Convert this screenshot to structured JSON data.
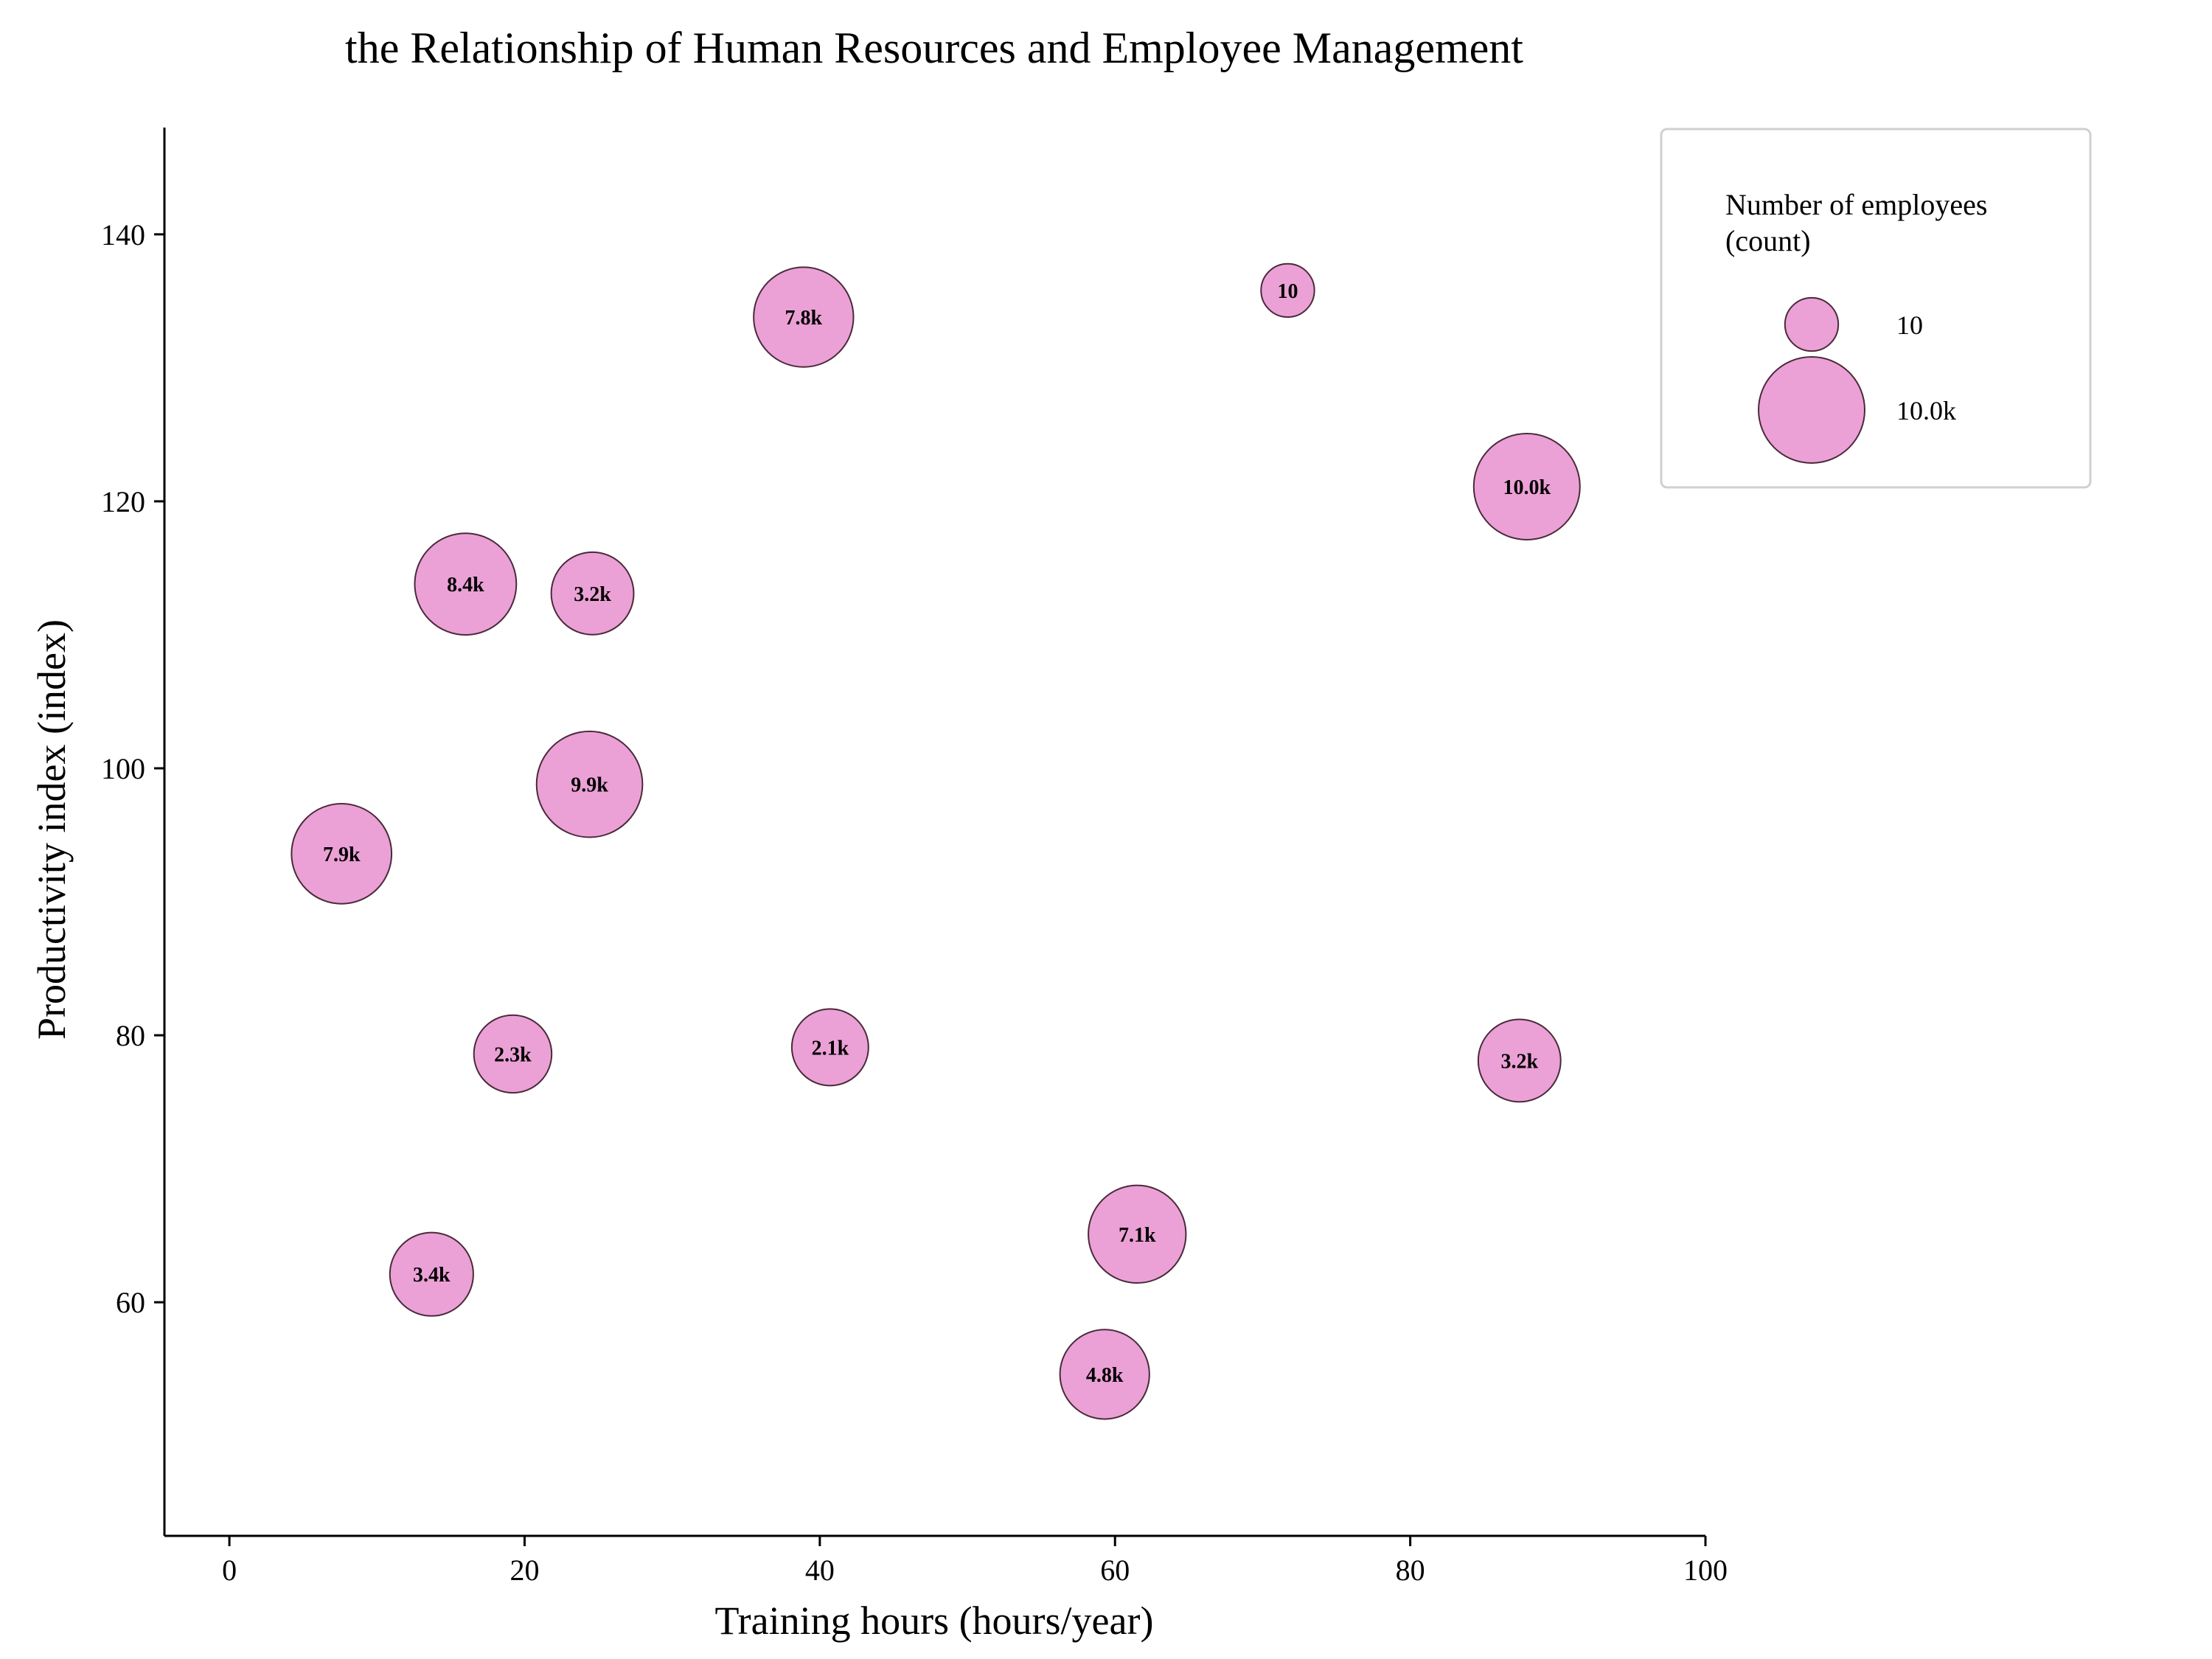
{
  "chart_data": {
    "type": "scatter",
    "subtype": "bubble",
    "title": "the Relationship of Human Resources and Employee Management",
    "xlabel": "Training hours (hours/year)",
    "ylabel": "Productivity index (index)",
    "xlim": [
      -4.4,
      100
    ],
    "ylim": [
      42.5,
      148
    ],
    "xticks": [
      0,
      20,
      40,
      60,
      80,
      100
    ],
    "yticks": [
      60,
      80,
      100,
      120,
      140
    ],
    "grid": false,
    "bubble_color": "#eba1d6",
    "bubble_edge_color": "#4a2a3a",
    "legend": {
      "title_line1": "Number of employees",
      "title_line2": "(count)",
      "placement": "top-right",
      "entries": [
        {
          "label": "10",
          "size": 10
        },
        {
          "label": "10.0k",
          "size": 10000
        }
      ]
    },
    "points": [
      {
        "x": 38.9,
        "y": 133.8,
        "size": 7800,
        "label": "7.8k"
      },
      {
        "x": 71.7,
        "y": 135.8,
        "size": 10,
        "label": "10"
      },
      {
        "x": 87.9,
        "y": 121.1,
        "size": 10000,
        "label": "10.0k"
      },
      {
        "x": 16.0,
        "y": 113.8,
        "size": 8400,
        "label": "8.4k"
      },
      {
        "x": 24.6,
        "y": 113.1,
        "size": 3200,
        "label": "3.2k"
      },
      {
        "x": 24.4,
        "y": 98.8,
        "size": 9900,
        "label": "9.9k"
      },
      {
        "x": 7.6,
        "y": 93.6,
        "size": 7900,
        "label": "7.9k"
      },
      {
        "x": 19.2,
        "y": 78.6,
        "size": 2300,
        "label": "2.3k"
      },
      {
        "x": 40.7,
        "y": 79.1,
        "size": 2100,
        "label": "2.1k"
      },
      {
        "x": 87.4,
        "y": 78.1,
        "size": 3200,
        "label": "3.2k"
      },
      {
        "x": 61.5,
        "y": 65.1,
        "size": 7100,
        "label": "7.1k"
      },
      {
        "x": 13.7,
        "y": 62.1,
        "size": 3400,
        "label": "3.4k"
      },
      {
        "x": 59.3,
        "y": 54.6,
        "size": 4800,
        "label": "4.8k"
      }
    ]
  }
}
